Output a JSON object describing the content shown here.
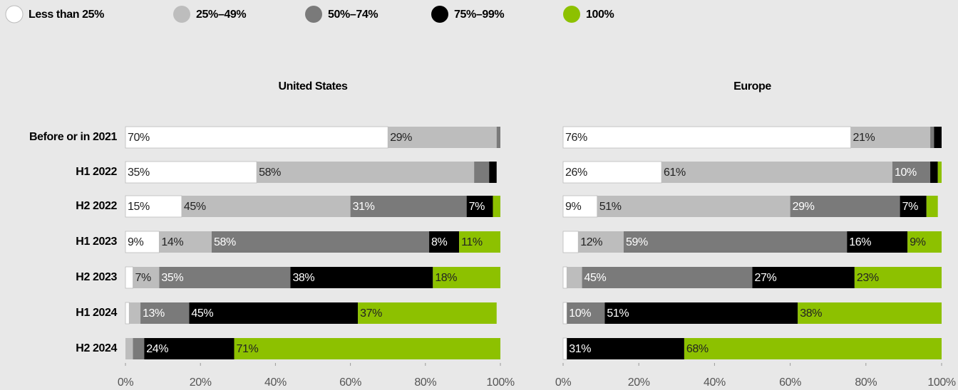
{
  "chart_data": [
    {
      "type": "stacked-bar-horizontal",
      "title": "United States",
      "categories": [
        "Before or in 2021",
        "H1 2022",
        "H2 2022",
        "H1 2023",
        "H2 2023",
        "H1 2024",
        "H2 2024"
      ],
      "series": [
        {
          "name": "Less than 25%",
          "color": "#ffffff",
          "values": [
            70,
            35,
            15,
            9,
            2,
            1,
            0
          ],
          "value_labels": [
            "70%",
            "35%",
            "15%",
            "9%",
            null,
            null,
            null
          ]
        },
        {
          "name": "25%–49%",
          "color": "#bdbdbd",
          "values": [
            29,
            58,
            45,
            14,
            7,
            3,
            2
          ],
          "value_labels": [
            "29%",
            "58%",
            "45%",
            "14%",
            "7%",
            null,
            null
          ]
        },
        {
          "name": "50%–74%",
          "color": "#7a7a7a",
          "values": [
            1,
            4,
            31,
            58,
            35,
            13,
            3
          ],
          "value_labels": [
            null,
            null,
            "31%",
            "58%",
            "35%",
            "13%",
            null
          ]
        },
        {
          "name": "75%–99%",
          "color": "#000000",
          "values": [
            0,
            2,
            7,
            8,
            38,
            45,
            24
          ],
          "value_labels": [
            null,
            null,
            "7%",
            "8%",
            "38%",
            "45%",
            "24%"
          ]
        },
        {
          "name": "100%",
          "color": "#8dc100",
          "values": [
            0,
            0,
            2,
            11,
            18,
            37,
            71
          ],
          "value_labels": [
            null,
            null,
            null,
            "11%",
            "18%",
            "37%",
            "71%"
          ]
        }
      ],
      "xlim": [
        0,
        100
      ],
      "xticks": [
        {
          "value": 0,
          "label": "0%"
        },
        {
          "value": 20,
          "label": "20%"
        },
        {
          "value": 40,
          "label": "40%"
        },
        {
          "value": 60,
          "label": "60%"
        },
        {
          "value": 80,
          "label": "80%"
        },
        {
          "value": 100,
          "label": "100%"
        }
      ]
    },
    {
      "type": "stacked-bar-horizontal",
      "title": "Europe",
      "series": [
        {
          "name": "Less than 25%",
          "color": "#ffffff",
          "values": [
            76,
            26,
            9,
            4,
            1,
            1,
            1
          ],
          "value_labels": [
            "76%",
            "26%",
            "9%",
            null,
            null,
            null,
            null
          ]
        },
        {
          "name": "25%–49%",
          "color": "#bdbdbd",
          "values": [
            21,
            61,
            51,
            12,
            4,
            0,
            0
          ],
          "value_labels": [
            "21%",
            "61%",
            "51%",
            "12%",
            null,
            null,
            null
          ]
        },
        {
          "name": "50%–74%",
          "color": "#7a7a7a",
          "values": [
            1,
            10,
            29,
            59,
            45,
            10,
            0
          ],
          "value_labels": [
            null,
            "10%",
            "29%",
            "59%",
            "45%",
            "10%",
            null
          ]
        },
        {
          "name": "75%–99%",
          "color": "#000000",
          "values": [
            2,
            2,
            7,
            16,
            27,
            51,
            31
          ],
          "value_labels": [
            null,
            null,
            "7%",
            "16%",
            "27%",
            "51%",
            "31%"
          ]
        },
        {
          "name": "100%",
          "color": "#8dc100",
          "values": [
            0,
            1,
            3,
            9,
            23,
            38,
            68
          ],
          "value_labels": [
            null,
            null,
            null,
            "9%",
            "23%",
            "38%",
            "68%"
          ]
        }
      ],
      "xlim": [
        0,
        100
      ],
      "xticks": [
        {
          "value": 0,
          "label": "0%"
        },
        {
          "value": 20,
          "label": "20%"
        },
        {
          "value": 40,
          "label": "40%"
        },
        {
          "value": 60,
          "label": "60%"
        },
        {
          "value": 80,
          "label": "80%"
        },
        {
          "value": 100,
          "label": "100%"
        }
      ]
    }
  ]
}
